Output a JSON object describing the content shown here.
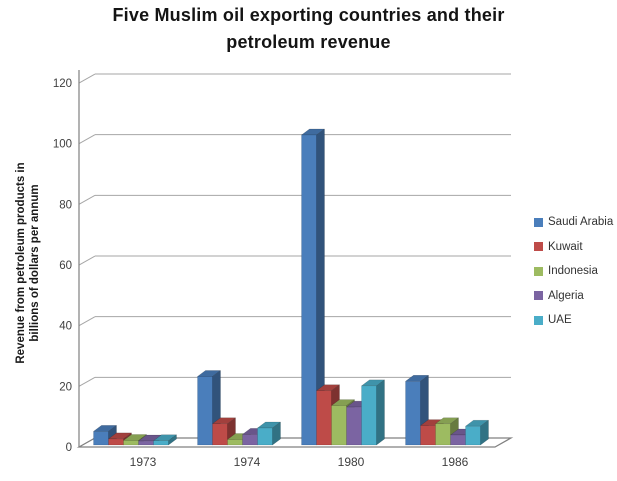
{
  "chart_data": {
    "type": "bar",
    "style": "3d-clustered",
    "title": "Five Muslim oil exporting countries and their petroleum revenue",
    "title_lines": [
      "Five Muslim oil exporting countries and their",
      "petroleum revenue"
    ],
    "xlabel": "",
    "ylabel": "Revenue from petroleum products in billions of dollars per annum",
    "ylabel_lines": [
      "Revenue from petroleum products in",
      "billions of dollars per annum"
    ],
    "categories": [
      "1973",
      "1974",
      "1980",
      "1986"
    ],
    "series": [
      {
        "name": "Saudi Arabia",
        "color": "#4a7ebb",
        "values": [
          4.5,
          22.6,
          102.2,
          21
        ]
      },
      {
        "name": "Kuwait",
        "color": "#be4b48",
        "values": [
          2,
          7,
          17.9,
          6.4
        ]
      },
      {
        "name": "Indonesia",
        "color": "#9dbb61",
        "values": [
          1.5,
          1.8,
          13,
          7
        ]
      },
      {
        "name": "Algeria",
        "color": "#7b64a2",
        "values": [
          1.3,
          3.5,
          12.5,
          3.3
        ]
      },
      {
        "name": "UAE",
        "color": "#4aadc8",
        "values": [
          1.4,
          5.6,
          19.5,
          6.2
        ]
      }
    ],
    "ylim": [
      0,
      120
    ],
    "ytick_step": 20,
    "yticks": [
      "0",
      "20",
      "40",
      "60",
      "80",
      "100",
      "120"
    ],
    "grid": true,
    "legend_position": "right",
    "colors": {
      "grid": "#a6a6a6",
      "axis": "#808080",
      "text": "#3f3f3f",
      "background": "#ffffff"
    }
  }
}
